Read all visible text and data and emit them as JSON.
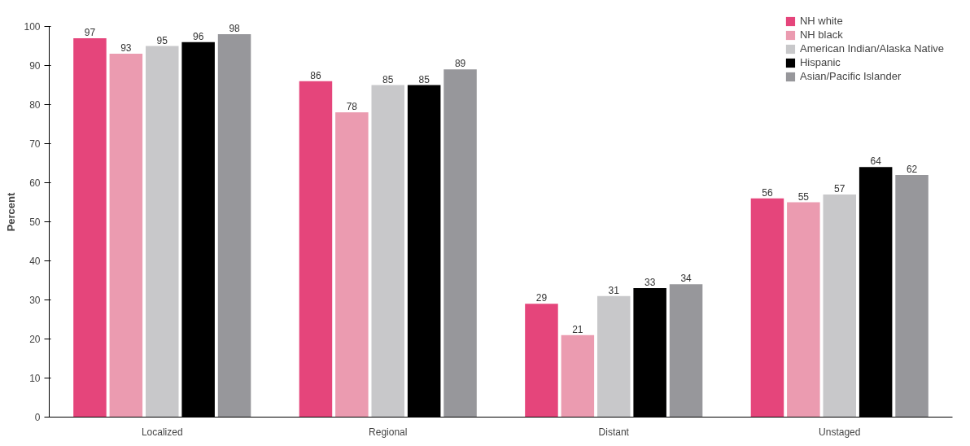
{
  "chart_data": {
    "type": "bar",
    "ylabel": "Percent",
    "categories": [
      "Localized",
      "Regional",
      "Distant",
      "Unstaged"
    ],
    "series": [
      {
        "name": "NH white",
        "color": "#e5457b",
        "values": [
          97,
          86,
          29,
          56
        ]
      },
      {
        "name": "NH black",
        "color": "#eb9bb0",
        "values": [
          93,
          78,
          21,
          55
        ]
      },
      {
        "name": "American Indian/Alaska Native",
        "color": "#c8c8ca",
        "values": [
          95,
          85,
          31,
          57
        ]
      },
      {
        "name": "Hispanic",
        "color": "#000000",
        "values": [
          96,
          85,
          33,
          64
        ]
      },
      {
        "name": "Asian/Pacific Islander",
        "color": "#97979b",
        "values": [
          98,
          89,
          34,
          62
        ]
      }
    ],
    "ylim": [
      0,
      100
    ],
    "yticks": [
      0,
      10,
      20,
      30,
      40,
      50,
      60,
      70,
      80,
      90,
      100
    ],
    "grid": false,
    "legend": "top right",
    "data_labels": true
  }
}
